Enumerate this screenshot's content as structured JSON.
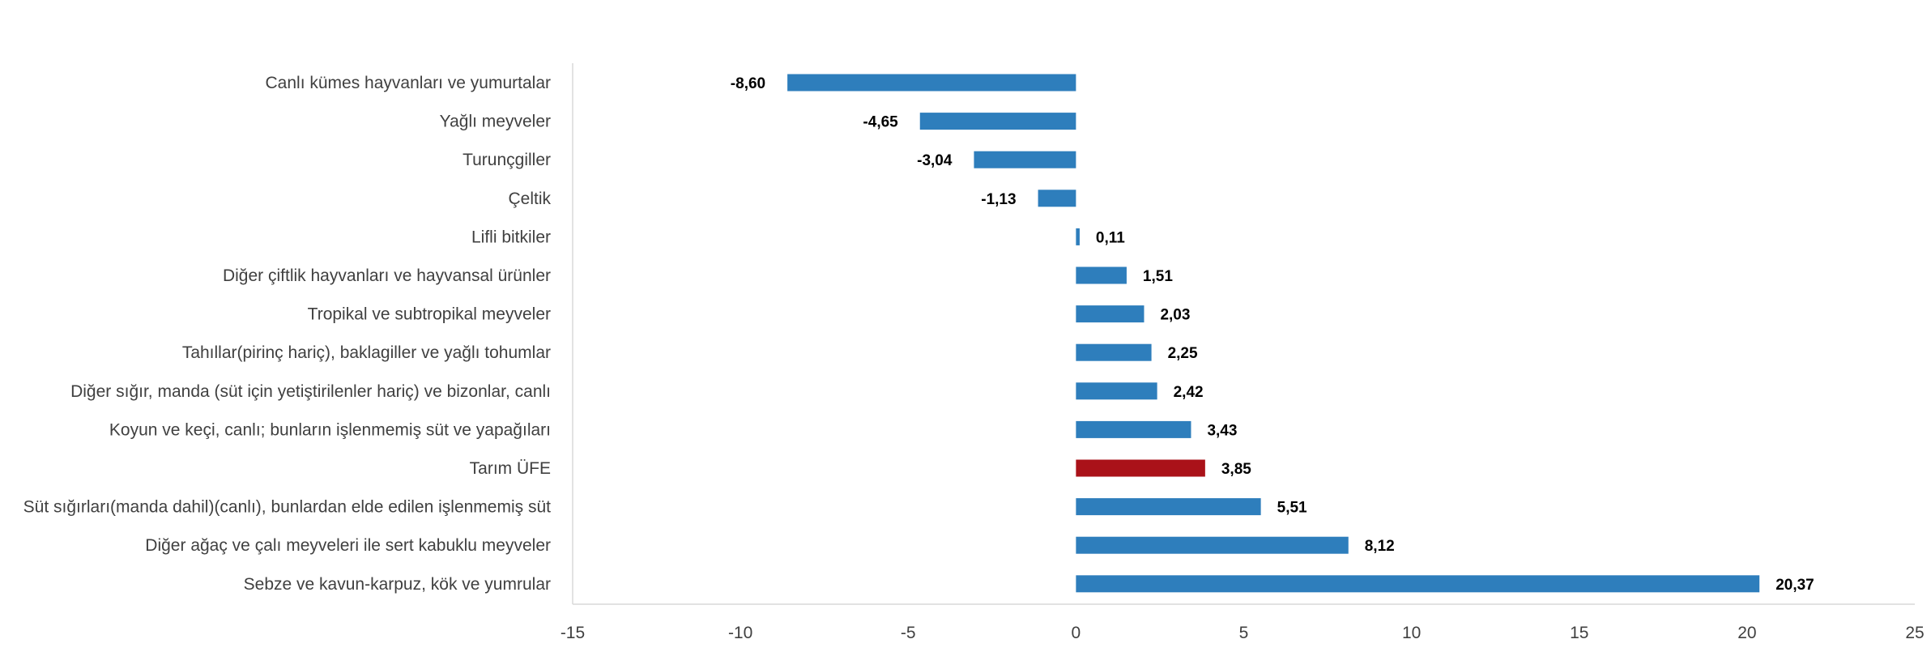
{
  "chart_data": {
    "type": "bar",
    "orientation": "horizontal",
    "title": "",
    "xlabel": "",
    "ylabel": "",
    "categories": [
      "Canlı kümes hayvanları ve yumurtalar",
      "Yağlı meyveler",
      "Turunçgiller",
      "Çeltik",
      "Lifli bitkiler",
      "Diğer çiftlik hayvanları ve hayvansal ürünler",
      "Tropikal ve subtropikal meyveler",
      "Tahıllar(pirinç hariç), baklagiller ve yağlı tohumlar",
      "Diğer sığır, manda (süt için yetiştirilenler hariç) ve bizonlar, canlı",
      "Koyun ve keçi, canlı; bunların işlenmemiş süt ve yapağıları",
      "Tarım ÜFE",
      "Süt sığırları(manda dahil)(canlı), bunlardan elde edilen işlenmemiş süt",
      "Diğer ağaç ve çalı meyveleri ile sert kabuklu meyveler",
      "Sebze ve kavun-karpuz, kök ve yumrular"
    ],
    "values": [
      -8.6,
      -4.65,
      -3.04,
      -1.13,
      0.11,
      1.51,
      2.03,
      2.25,
      2.42,
      3.43,
      3.85,
      5.51,
      8.12,
      20.37
    ],
    "data_labels": [
      "-8,60",
      "-4,65",
      "-3,04",
      "-1,13",
      "0,11",
      "1,51",
      "2,03",
      "2,25",
      "2,42",
      "3,43",
      "3,85",
      "5,51",
      "8,12",
      "20,37"
    ],
    "xlim": [
      -15,
      25
    ],
    "x_ticks": [
      -15,
      -10,
      -5,
      0,
      5,
      10,
      15,
      20,
      25
    ],
    "x_tick_labels": [
      "-15",
      "-10",
      "-5",
      "0",
      "5",
      "10",
      "15",
      "20",
      "25"
    ],
    "grid": false,
    "legend": "none",
    "colors": {
      "default": "#2e7ebc",
      "highlight": "#aa1219",
      "highlight_category": "Tarım ÜFE"
    }
  }
}
